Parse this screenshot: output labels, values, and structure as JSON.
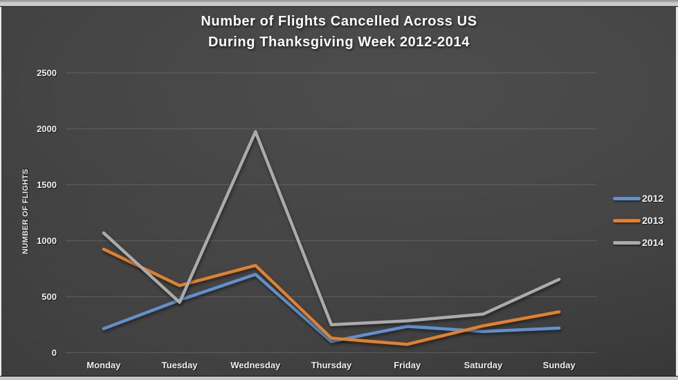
{
  "title": {
    "line1": "Number of Flights Cancelled Across US",
    "line2": "During Thanksgiving Week 2012-2014"
  },
  "chart_data": {
    "type": "line",
    "title": "Number of Flights Cancelled Across US During Thanksgiving Week 2012-2014",
    "categories": [
      "Monday",
      "Tuesday",
      "Wednesday",
      "Thursday",
      "Friday",
      "Saturday",
      "Sunday"
    ],
    "series": [
      {
        "name": "2012",
        "color": "#6191CC",
        "values": [
          215,
          470,
          700,
          100,
          235,
          190,
          220
        ]
      },
      {
        "name": "2013",
        "color": "#E0812F",
        "values": [
          925,
          600,
          780,
          130,
          75,
          240,
          365
        ]
      },
      {
        "name": "2014",
        "color": "#ABABAB",
        "values": [
          1070,
          450,
          1975,
          250,
          285,
          345,
          655
        ]
      }
    ],
    "xlabel": "",
    "ylabel": "NUMBER OF FLIGHTS",
    "ylim": [
      0,
      2500
    ],
    "ytick_step": 500,
    "yticks": [
      0,
      500,
      1000,
      1500,
      2000,
      2500
    ],
    "grid": true,
    "legend_position": "right",
    "gridline_color": "rgba(255,255,255,0.15)"
  }
}
